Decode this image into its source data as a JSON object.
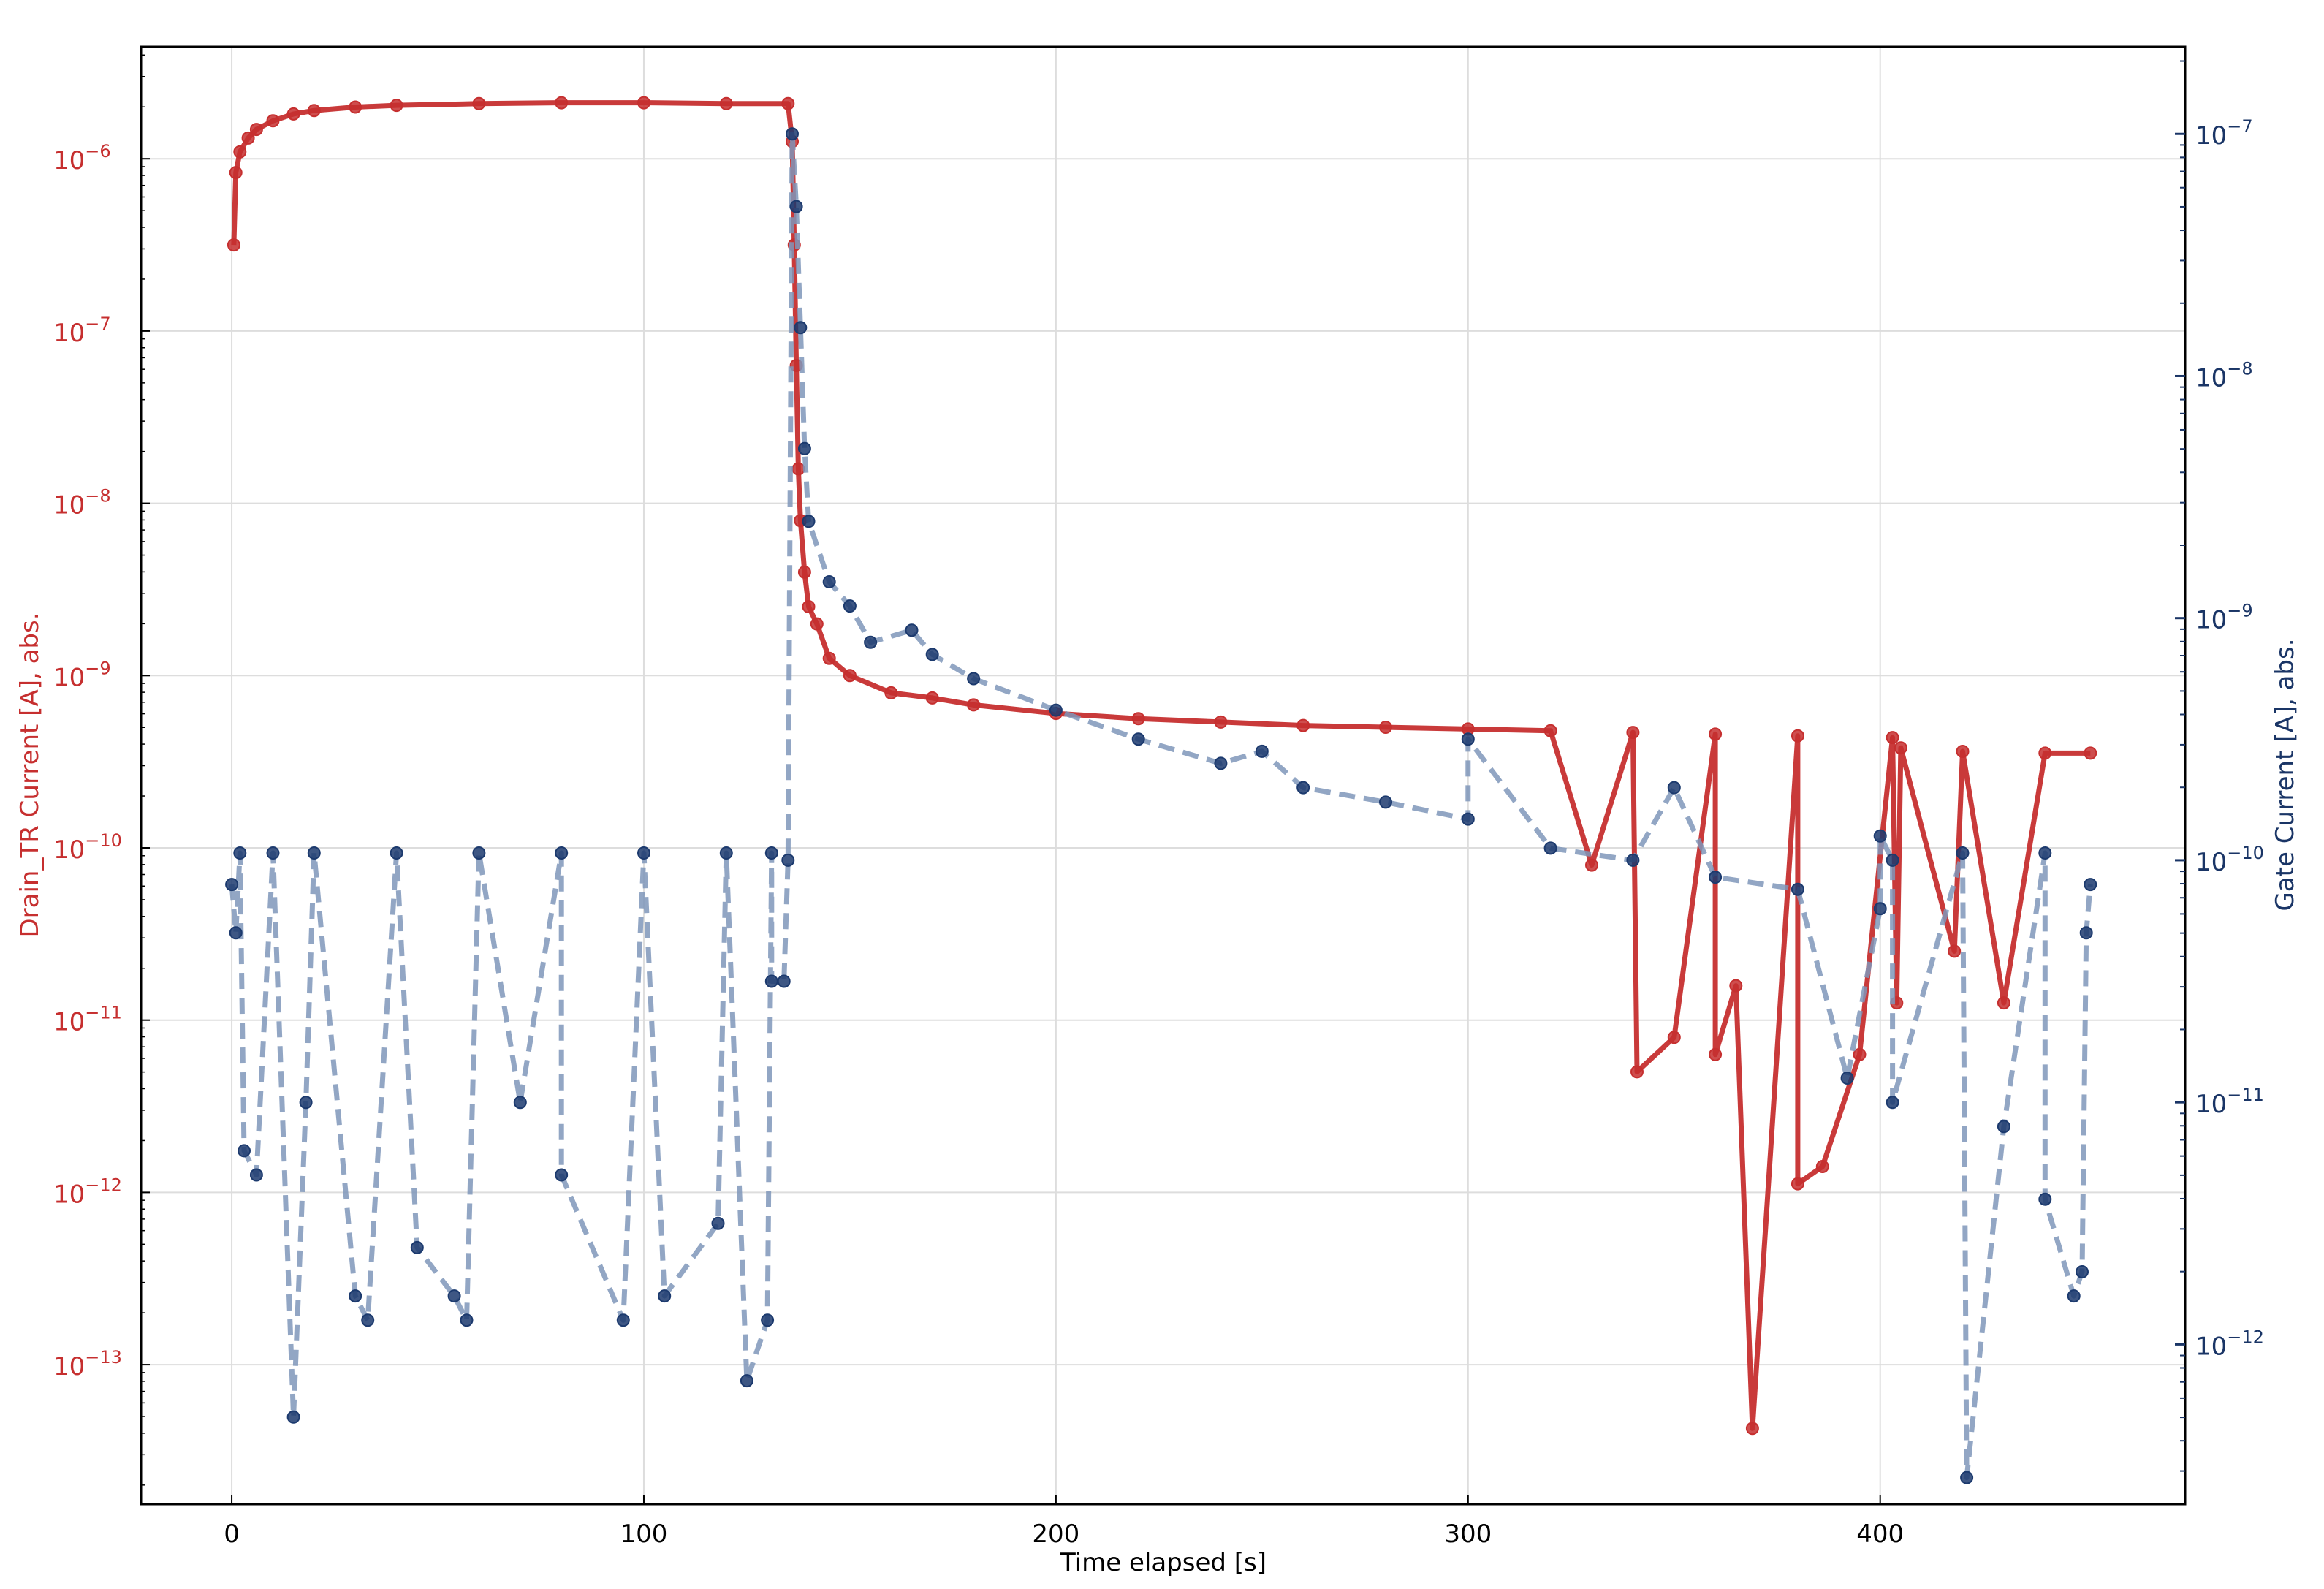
{
  "chart_data": {
    "type": "scatter",
    "xlabel": "Time elapsed [s]",
    "ylabel_left": "Drain_TR Current [A], abs.",
    "ylabel_right": "Gate Current [A], abs.",
    "xlim": [
      -22,
      474
    ],
    "x_ticks": [
      0,
      100,
      200,
      300,
      400
    ],
    "y_left": {
      "scale": "log",
      "lim_log10": [
        -13.81,
        -5.35
      ],
      "tick_exponents": [
        -6,
        -7,
        -8,
        -9,
        -10,
        -11,
        -12,
        -13
      ]
    },
    "y_right": {
      "scale": "log",
      "lim_log10": [
        -12.66,
        -6.64
      ],
      "tick_exponents": [
        -7,
        -8,
        -9,
        -10,
        -11,
        -12
      ]
    },
    "grid": true,
    "colors": {
      "drain": "#c62f2f",
      "gate_line": "#7f97ba",
      "gate_marker": "#1c3a6e",
      "left_axis": "#c62f2f",
      "right_axis": "#1a3566"
    },
    "series": [
      {
        "name": "Drain_TR Current",
        "axis": "left",
        "style": "solid line with circle markers",
        "points_log10": [
          [
            0.5,
            -6.5
          ],
          [
            1,
            -6.08
          ],
          [
            2,
            -5.96
          ],
          [
            4,
            -5.88
          ],
          [
            6,
            -5.83
          ],
          [
            10,
            -5.78
          ],
          [
            15,
            -5.74
          ],
          [
            20,
            -5.72
          ],
          [
            30,
            -5.7
          ],
          [
            40,
            -5.69
          ],
          [
            60,
            -5.68
          ],
          [
            80,
            -5.675
          ],
          [
            100,
            -5.675
          ],
          [
            120,
            -5.68
          ],
          [
            135,
            -5.68
          ],
          [
            136,
            -5.9
          ],
          [
            136.5,
            -6.5
          ],
          [
            137,
            -7.2
          ],
          [
            137.5,
            -7.8
          ],
          [
            138,
            -8.1
          ],
          [
            139,
            -8.4
          ],
          [
            140,
            -8.6
          ],
          [
            142,
            -8.7
          ],
          [
            145,
            -8.9
          ],
          [
            150,
            -9.0
          ],
          [
            160,
            -9.1
          ],
          [
            170,
            -9.13
          ],
          [
            180,
            -9.17
          ],
          [
            200,
            -9.22
          ],
          [
            220,
            -9.25
          ],
          [
            240,
            -9.27
          ],
          [
            260,
            -9.29
          ],
          [
            280,
            -9.3
          ],
          [
            300,
            -9.31
          ],
          [
            320,
            -9.32
          ],
          [
            340,
            -9.33
          ],
          [
            360,
            -9.34
          ],
          [
            380,
            -9.35
          ],
          [
            403,
            -9.36
          ],
          [
            405,
            -9.42
          ],
          [
            420,
            -9.44
          ],
          [
            440,
            -9.45
          ],
          [
            451,
            -9.45
          ],
          [
            330,
            -10.1
          ],
          [
            341,
            -11.3
          ],
          [
            350,
            -11.1
          ],
          [
            360,
            -11.2
          ],
          [
            365,
            -10.8
          ],
          [
            369,
            -13.37
          ],
          [
            380,
            -11.95
          ],
          [
            386,
            -11.85
          ],
          [
            395,
            -11.2
          ],
          [
            404,
            -10.9
          ],
          [
            418,
            -10.6
          ],
          [
            430,
            -10.9
          ]
        ]
      },
      {
        "name": "Gate Current",
        "axis": "right",
        "style": "dashed line with circle markers",
        "points_log10": [
          [
            0,
            -10.1
          ],
          [
            2,
            -9.97
          ],
          [
            10,
            -9.97
          ],
          [
            20,
            -9.97
          ],
          [
            40,
            -9.97
          ],
          [
            60,
            -9.97
          ],
          [
            80,
            -9.97
          ],
          [
            100,
            -9.97
          ],
          [
            120,
            -9.97
          ],
          [
            131,
            -9.97
          ],
          [
            1,
            -10.3
          ],
          [
            3,
            -11.2
          ],
          [
            6,
            -11.3
          ],
          [
            15,
            -12.3
          ],
          [
            18,
            -11.0
          ],
          [
            30,
            -11.8
          ],
          [
            33,
            -11.9
          ],
          [
            45,
            -11.6
          ],
          [
            54,
            -11.8
          ],
          [
            57,
            -11.9
          ],
          [
            70,
            -11.0
          ],
          [
            80,
            -11.3
          ],
          [
            95,
            -11.9
          ],
          [
            105,
            -11.8
          ],
          [
            118,
            -11.5
          ],
          [
            125,
            -12.15
          ],
          [
            130,
            -11.9
          ],
          [
            131,
            -10.5
          ],
          [
            134,
            -10.5
          ],
          [
            135,
            -10.0
          ],
          [
            136,
            -7.0
          ],
          [
            137,
            -7.3
          ],
          [
            138,
            -7.8
          ],
          [
            139,
            -8.3
          ],
          [
            140,
            -8.6
          ],
          [
            145,
            -8.85
          ],
          [
            150,
            -8.95
          ],
          [
            155,
            -9.1
          ],
          [
            165,
            -9.05
          ],
          [
            170,
            -9.15
          ],
          [
            180,
            -9.25
          ],
          [
            200,
            -9.38
          ],
          [
            220,
            -9.5
          ],
          [
            240,
            -9.6
          ],
          [
            260,
            -9.7
          ],
          [
            280,
            -9.76
          ],
          [
            300,
            -9.83
          ],
          [
            320,
            -9.95
          ],
          [
            340,
            -10.0
          ],
          [
            360,
            -10.07
          ],
          [
            380,
            -10.12
          ],
          [
            400,
            -10.2
          ],
          [
            403,
            -10.0
          ],
          [
            420,
            -9.97
          ],
          [
            440,
            -9.97
          ],
          [
            451,
            -10.1
          ],
          [
            250,
            -9.55
          ],
          [
            300,
            -9.5
          ],
          [
            350,
            -9.7
          ],
          [
            400,
            -9.9
          ],
          [
            421,
            -12.55
          ],
          [
            430,
            -11.1
          ],
          [
            440,
            -11.4
          ],
          [
            447,
            -11.8
          ],
          [
            449,
            -11.7
          ],
          [
            392,
            -10.9
          ],
          [
            403,
            -11.0
          ],
          [
            450,
            -10.3
          ]
        ]
      }
    ]
  }
}
